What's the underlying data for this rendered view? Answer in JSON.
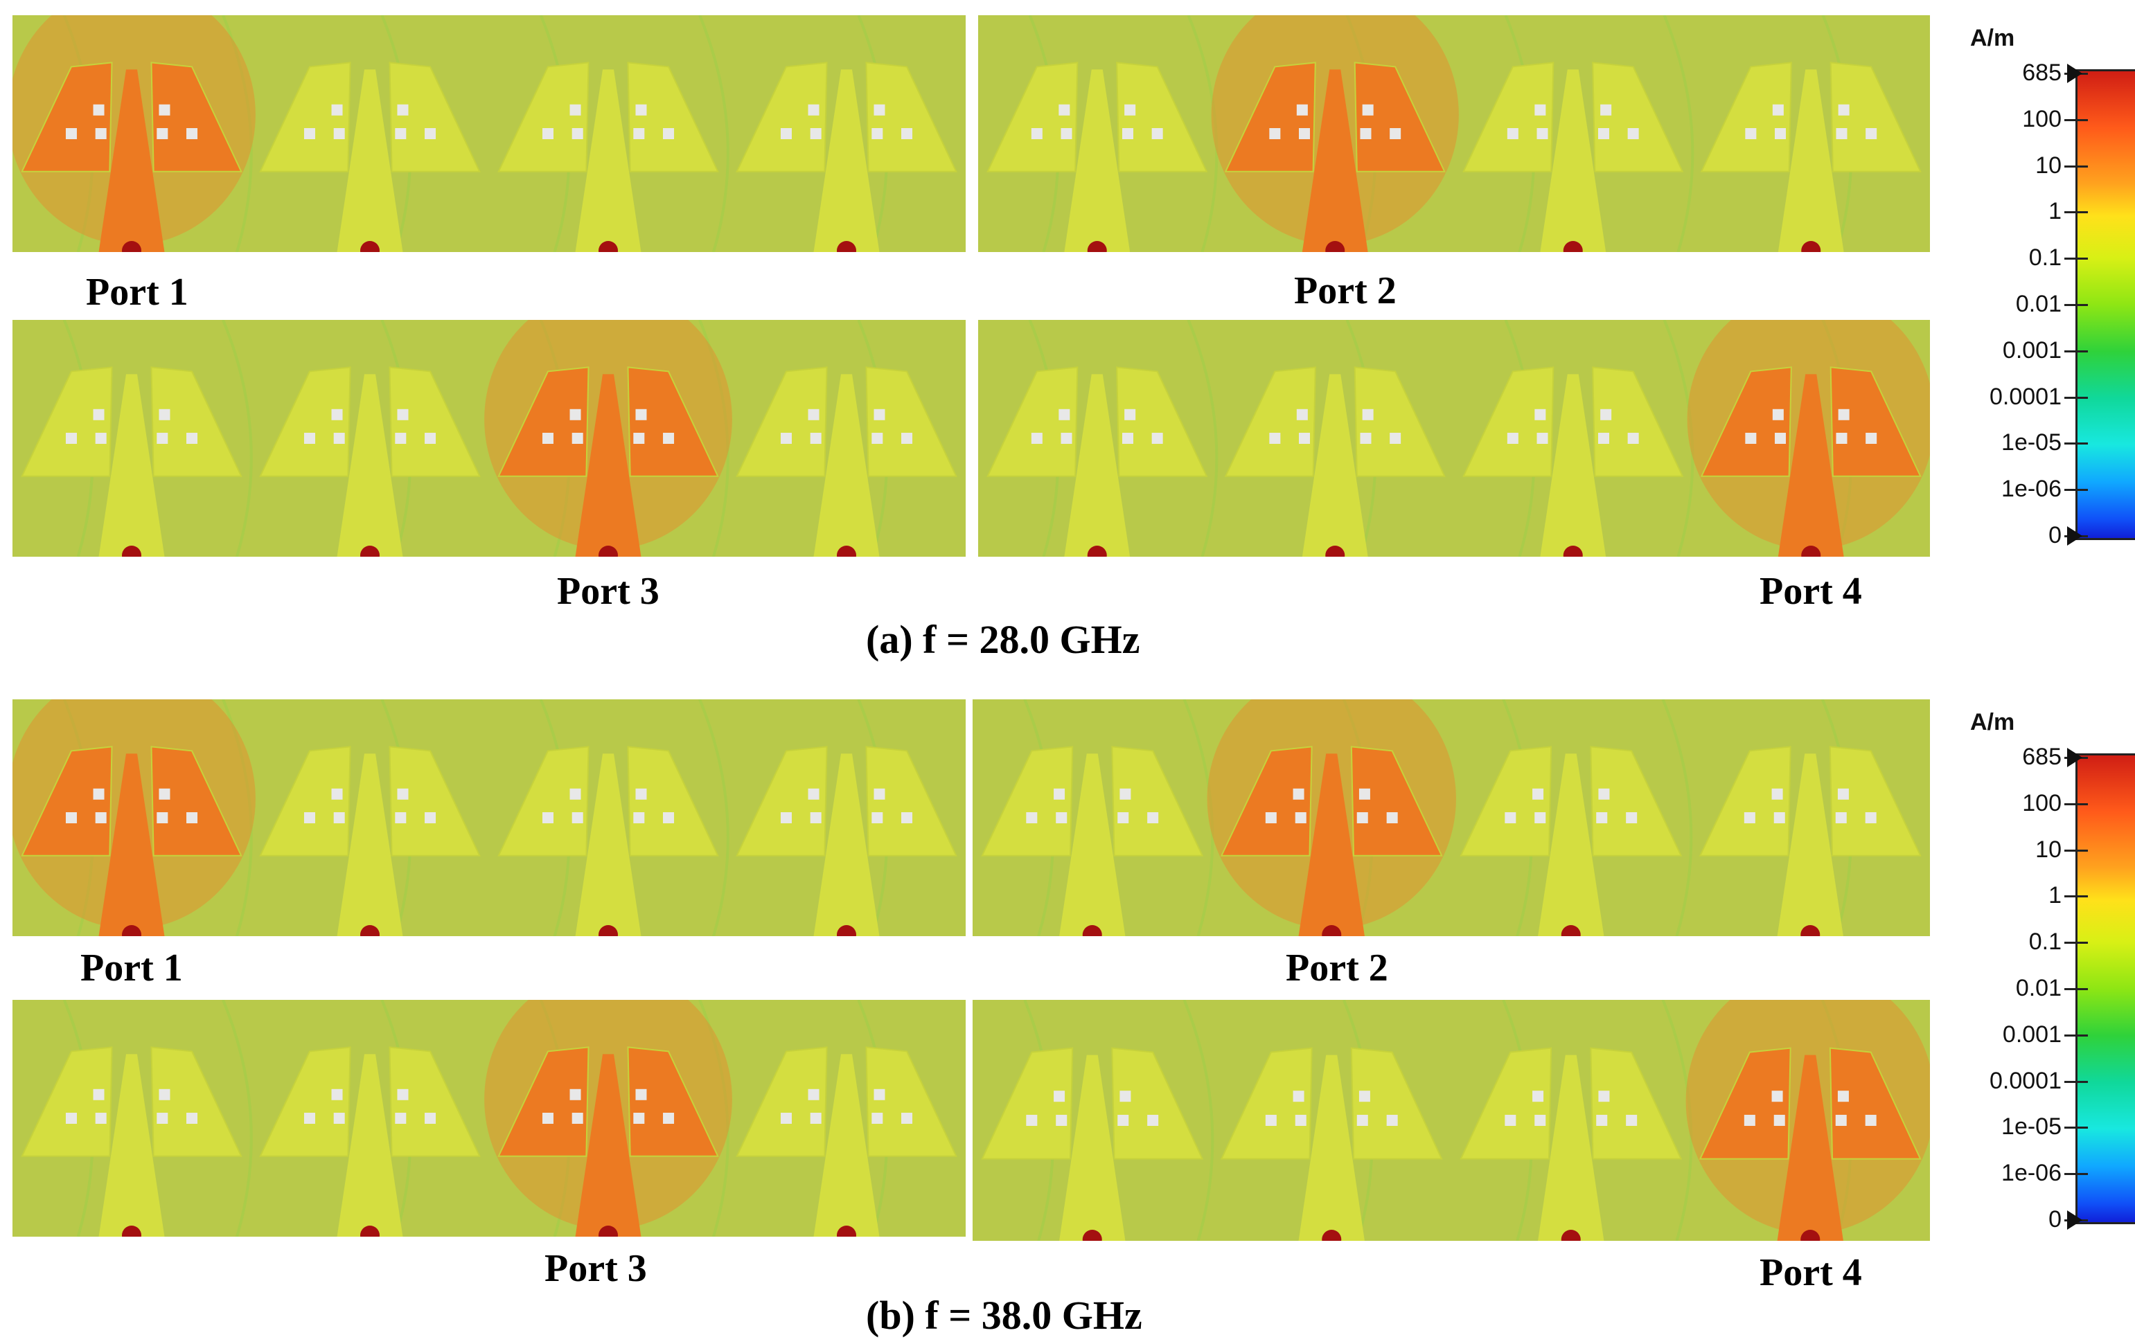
{
  "field_unit": "A/m",
  "colorbar_ticks": [
    "685",
    "100",
    "10",
    "1",
    "0.1",
    "0.01",
    "0.001",
    "0.0001",
    "1e-05",
    "1e-06",
    "0"
  ],
  "sections": [
    {
      "caption": "(a) f = 28.0 GHz",
      "ports": [
        {
          "label": "Port 1",
          "excited": 1
        },
        {
          "label": "Port 2",
          "excited": 2
        },
        {
          "label": "Port 3",
          "excited": 3
        },
        {
          "label": "Port 4",
          "excited": 4
        }
      ]
    },
    {
      "caption": "(b) f = 38.0 GHz",
      "ports": [
        {
          "label": "Port 1",
          "excited": 1
        },
        {
          "label": "Port 2",
          "excited": 2
        },
        {
          "label": "Port 3",
          "excited": 3
        },
        {
          "label": "Port 4",
          "excited": 4
        }
      ]
    }
  ],
  "colors": {
    "substrate": "#b8c94a",
    "antenna_idle": "#d4de40",
    "antenna_excited": "#ec7a22",
    "feed_port": "#a41010"
  }
}
